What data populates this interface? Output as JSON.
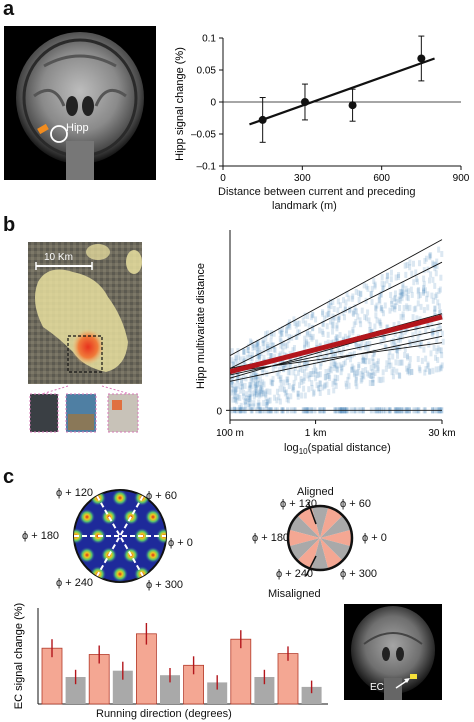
{
  "panels": {
    "a": {
      "letter": "a",
      "brain_label": "Hipp",
      "chart_data": {
        "type": "scatter",
        "x": [
          150,
          310,
          490,
          750
        ],
        "y": [
          -0.028,
          0.0,
          -0.005,
          0.068
        ],
        "yerr": [
          0.035,
          0.028,
          0.025,
          0.035
        ],
        "fit_line": [
          [
            100,
            -0.035
          ],
          [
            800,
            0.068
          ]
        ],
        "xlabel": "Distance between current and preceding landmark (m)",
        "xlabel_line1": "Distance between current and preceding",
        "xlabel_line2": "landmark (m)",
        "ylabel": "Hipp signal change (%)",
        "xlim": [
          0,
          900
        ],
        "ylim": [
          -0.1,
          0.1
        ],
        "xticks": [
          "0",
          "300",
          "600",
          "900"
        ],
        "yticks": [
          "0.1",
          "0.05",
          "0",
          "–0.05",
          "–0.1"
        ]
      }
    },
    "b": {
      "letter": "b",
      "scale_label": "10 Km",
      "chart_data": {
        "type": "scatter",
        "xlabel": "log10(spatial distance)",
        "xlabel_prefix": "log",
        "xlabel_sub": "10",
        "xlabel_suffix": "(spatial distance)",
        "ylabel": "Hipp multivariate distance",
        "xticks": [
          "100 m",
          "1 km",
          "30 km"
        ],
        "yticks": [
          "0"
        ],
        "fit_lines": [
          [
            [
              100,
              1.7
            ],
            [
              30000,
              5.3
            ]
          ],
          [
            [
              100,
              1.3
            ],
            [
              30000,
              4.6
            ]
          ],
          [
            [
              100,
              1.2
            ],
            [
              30000,
              3.0
            ]
          ],
          [
            [
              100,
              1.0
            ],
            [
              30000,
              2.9
            ]
          ],
          [
            [
              100,
              1.3
            ],
            [
              30000,
              2.7
            ]
          ],
          [
            [
              100,
              1.1
            ],
            [
              30000,
              2.5
            ]
          ],
          [
            [
              100,
              0.9
            ],
            [
              30000,
              2.3
            ]
          ],
          [
            [
              100,
              1.2
            ],
            [
              30000,
              2.1
            ]
          ],
          [
            [
              100,
              0.0
            ],
            [
              30000,
              0.0
            ]
          ]
        ],
        "mean_fit": [
          [
            100,
            1.2
          ],
          [
            30000,
            2.9
          ]
        ]
      }
    },
    "c": {
      "letter": "c",
      "grid_angles": [
        "ϕ + 120",
        "ϕ + 60",
        "ϕ + 180",
        "ϕ + 0",
        "ϕ + 240",
        "ϕ + 300"
      ],
      "aligned_label": "Aligned",
      "misaligned_label": "Misaligned",
      "ec_label": "EC",
      "chart_data": {
        "type": "bar",
        "ylabel": "EC signal change (%)",
        "xlabel": "Running direction (degrees)",
        "values": [
          0.62,
          0.3,
          0.55,
          0.37,
          0.78,
          0.32,
          0.43,
          0.24,
          0.72,
          0.3,
          0.56,
          0.19
        ],
        "errors": [
          0.1,
          0.08,
          0.1,
          0.1,
          0.12,
          0.08,
          0.1,
          0.08,
          0.1,
          0.08,
          0.08,
          0.07
        ],
        "bar_types": [
          "aligned",
          "misaligned",
          "aligned",
          "misaligned",
          "aligned",
          "misaligned",
          "aligned",
          "misaligned",
          "aligned",
          "misaligned",
          "aligned",
          "misaligned"
        ],
        "colors": {
          "aligned": "#f4a793",
          "misaligned": "#a9a9a9"
        }
      }
    }
  }
}
